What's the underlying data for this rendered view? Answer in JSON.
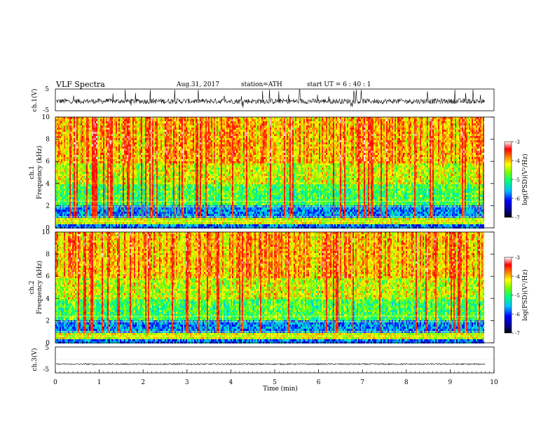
{
  "header": {
    "title": "VLF  Spectra",
    "date": "Aug.31, 2017",
    "station": "station=ATH",
    "start": "start  UT  =   6  : 40 : 1"
  },
  "chart_data": [
    {
      "type": "line",
      "panel": "waveform-ch1",
      "ylabel": "ch.1(V)",
      "yticks": [
        "5",
        "-5"
      ],
      "ylim": [
        -5,
        5
      ],
      "xlim": [
        0,
        10
      ],
      "data_end_min": 9.8,
      "description_values": {
        "baseline": -0.6,
        "amplitude": 1.2,
        "spikes_to": 5
      }
    },
    {
      "type": "heatmap",
      "panel": "spectrogram-ch1",
      "ylabel": "ch.1\nFrequency  (kHz)",
      "ylabel_line1": "ch.1",
      "ylabel_line2": "Frequency  (kHz)",
      "yticks": [
        "0",
        "2",
        "4",
        "6",
        "8",
        "10"
      ],
      "ylim": [
        0,
        10
      ],
      "xlim": [
        0,
        10
      ],
      "colorbar": {
        "label": "log(PSD)(V²/Hz)",
        "ticks": [
          "-3",
          "-4",
          "-5",
          "-6",
          "-7"
        ],
        "range": [
          -7,
          -3
        ]
      }
    },
    {
      "type": "heatmap",
      "panel": "spectrogram-ch2",
      "ylabel_line1": "ch.2",
      "ylabel_line2": "Frequency  (kHz)",
      "yticks": [
        "0",
        "2",
        "4",
        "6",
        "8",
        "10"
      ],
      "ylim": [
        0,
        10
      ],
      "xlim": [
        0,
        10
      ],
      "colorbar": {
        "label": "log(PSD)(V²/Hz)",
        "ticks": [
          "-3",
          "-4",
          "-5",
          "-6",
          "-7"
        ],
        "range": [
          -7,
          -3
        ]
      }
    },
    {
      "type": "line",
      "panel": "waveform-ch3",
      "ylabel": "ch.3(V)",
      "yticks": [
        "5",
        "-5"
      ],
      "ylim": [
        -5,
        5
      ],
      "xlim": [
        0,
        10
      ],
      "data_end_min": 9.8,
      "description_values": {
        "baseline": -1.6,
        "amplitude": 0.25
      }
    }
  ],
  "xaxis": {
    "label": "Time  (min)",
    "ticks": [
      "0",
      "1",
      "2",
      "3",
      "4",
      "5",
      "6",
      "7",
      "8",
      "9",
      "10"
    ],
    "range": [
      0,
      10
    ]
  },
  "colors": {
    "scale": [
      "#000080",
      "#0000ff",
      "#00bfff",
      "#00ff80",
      "#80ff00",
      "#ffff00",
      "#ff8000",
      "#ff0000",
      "#ffffff"
    ]
  }
}
